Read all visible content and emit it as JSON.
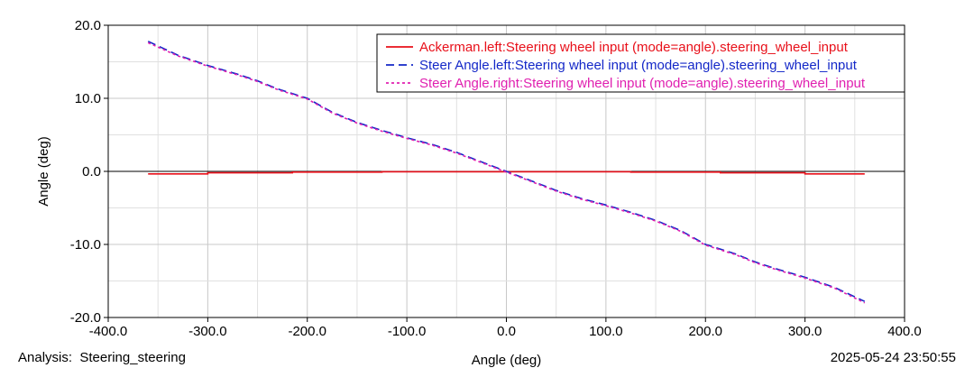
{
  "chart_data": {
    "type": "line",
    "title": "",
    "xlabel": "Angle (deg)",
    "ylabel": "Angle (deg)",
    "xlim": [
      -400,
      400
    ],
    "ylim": [
      -20,
      20
    ],
    "xticks": [
      -400,
      -300,
      -200,
      -100,
      0,
      100,
      200,
      300,
      400
    ],
    "xtick_labels": [
      "-400.0",
      "-300.0",
      "-200.0",
      "-100.0",
      "0.0",
      "100.0",
      "200.0",
      "300.0",
      "400.0"
    ],
    "yticks": [
      -20,
      -10,
      0,
      10,
      20
    ],
    "ytick_labels": [
      "-20.0",
      "-10.0",
      "0.0",
      "10.0",
      "20.0"
    ],
    "grid": true,
    "legend_position": "top-right",
    "series": [
      {
        "name": "Ackerman.left:Steering wheel input (mode=angle).steering_wheel_input",
        "color": "#e8101a",
        "style": "solid",
        "x": [
          -360,
          -300,
          -300,
          -215,
          -215,
          -125,
          -125,
          125,
          125,
          215,
          215,
          300,
          300,
          360
        ],
        "y": [
          -0.35,
          -0.35,
          -0.2,
          -0.2,
          -0.1,
          -0.1,
          -0.05,
          -0.05,
          -0.1,
          -0.1,
          -0.2,
          -0.2,
          -0.35,
          -0.35
        ]
      },
      {
        "name": "Steer Angle.left:Steering wheel input (mode=angle).steering_wheel_input",
        "color": "#1428c8",
        "style": "dashed",
        "x": [
          -360,
          -330,
          -300,
          -270,
          -250,
          -230,
          -200,
          -175,
          -150,
          -125,
          -100,
          -75,
          -50,
          -25,
          0,
          25,
          50,
          75,
          100,
          125,
          150,
          175,
          200,
          230,
          250,
          270,
          300,
          330,
          360
        ],
        "y": [
          17.8,
          15.9,
          14.5,
          13.3,
          12.4,
          11.3,
          10.0,
          8.1,
          6.7,
          5.6,
          4.6,
          3.7,
          2.6,
          1.3,
          0.0,
          -1.3,
          -2.6,
          -3.7,
          -4.6,
          -5.6,
          -6.7,
          -8.1,
          -10.0,
          -11.3,
          -12.4,
          -13.3,
          -14.5,
          -15.9,
          -17.8
        ]
      },
      {
        "name": "Steer Angle.right:Steering wheel input (mode=angle).steering_wheel_input",
        "color": "#e020b0",
        "style": "dotted",
        "x": [
          -360,
          -330,
          -300,
          -270,
          -250,
          -230,
          -200,
          -175,
          -150,
          -125,
          -100,
          -75,
          -50,
          -25,
          0,
          25,
          50,
          75,
          100,
          125,
          150,
          175,
          200,
          230,
          250,
          270,
          300,
          330,
          360
        ],
        "y": [
          17.6,
          15.8,
          14.4,
          13.2,
          12.3,
          11.2,
          9.9,
          8.0,
          6.6,
          5.5,
          4.5,
          3.6,
          2.5,
          1.2,
          -0.1,
          -1.4,
          -2.7,
          -3.8,
          -4.7,
          -5.7,
          -6.8,
          -8.2,
          -10.1,
          -11.4,
          -12.5,
          -13.4,
          -14.6,
          -16.0,
          -18.0
        ]
      }
    ]
  },
  "footer": {
    "analysis_label": "Analysis:",
    "analysis_value": "Steering_steering",
    "timestamp": "2025-05-24 23:50:55"
  }
}
